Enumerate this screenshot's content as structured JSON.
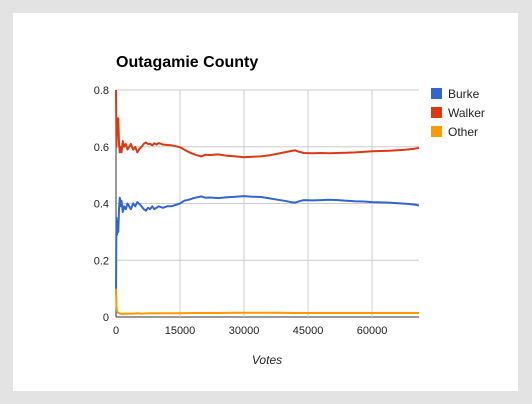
{
  "chart_data": {
    "type": "line",
    "title": "Outagamie County",
    "xlabel": "Votes",
    "ylabel": "",
    "xlim": [
      0,
      71000
    ],
    "ylim": [
      0,
      0.8
    ],
    "x_ticks": [
      0,
      15000,
      30000,
      45000,
      60000
    ],
    "y_ticks": [
      0,
      0.2,
      0.4,
      0.6,
      0.8
    ],
    "grid": true,
    "legend_position": "right",
    "series": [
      {
        "name": "Burke",
        "color": "#3366cc",
        "points": [
          [
            0,
            0.08
          ],
          [
            100,
            0.35
          ],
          [
            250,
            0.29
          ],
          [
            400,
            0.34
          ],
          [
            550,
            0.3
          ],
          [
            700,
            0.38
          ],
          [
            900,
            0.42
          ],
          [
            1100,
            0.39
          ],
          [
            1300,
            0.41
          ],
          [
            1600,
            0.37
          ],
          [
            1900,
            0.39
          ],
          [
            2300,
            0.38
          ],
          [
            2700,
            0.4
          ],
          [
            3100,
            0.39
          ],
          [
            3500,
            0.38
          ],
          [
            4000,
            0.4
          ],
          [
            4500,
            0.39
          ],
          [
            5000,
            0.405
          ],
          [
            5500,
            0.398
          ],
          [
            6000,
            0.39
          ],
          [
            6500,
            0.38
          ],
          [
            7000,
            0.375
          ],
          [
            7500,
            0.385
          ],
          [
            8000,
            0.38
          ],
          [
            8500,
            0.39
          ],
          [
            9000,
            0.38
          ],
          [
            9500,
            0.385
          ],
          [
            10000,
            0.39
          ],
          [
            11000,
            0.385
          ],
          [
            12000,
            0.39
          ],
          [
            13000,
            0.39
          ],
          [
            14000,
            0.395
          ],
          [
            15000,
            0.4
          ],
          [
            16000,
            0.41
          ],
          [
            17000,
            0.413
          ],
          [
            18000,
            0.418
          ],
          [
            19000,
            0.422
          ],
          [
            20000,
            0.425
          ],
          [
            21000,
            0.42
          ],
          [
            22000,
            0.421
          ],
          [
            24000,
            0.419
          ],
          [
            26000,
            0.422
          ],
          [
            28000,
            0.424
          ],
          [
            30000,
            0.426
          ],
          [
            32000,
            0.424
          ],
          [
            34000,
            0.423
          ],
          [
            36000,
            0.418
          ],
          [
            38000,
            0.413
          ],
          [
            40000,
            0.408
          ],
          [
            41000,
            0.405
          ],
          [
            42000,
            0.403
          ],
          [
            43000,
            0.408
          ],
          [
            44000,
            0.412
          ],
          [
            46000,
            0.411
          ],
          [
            48000,
            0.412
          ],
          [
            50000,
            0.413
          ],
          [
            52000,
            0.412
          ],
          [
            54000,
            0.41
          ],
          [
            56000,
            0.408
          ],
          [
            58000,
            0.407
          ],
          [
            60000,
            0.405
          ],
          [
            62000,
            0.404
          ],
          [
            64000,
            0.403
          ],
          [
            66000,
            0.401
          ],
          [
            68000,
            0.399
          ],
          [
            70000,
            0.396
          ],
          [
            71000,
            0.393
          ]
        ]
      },
      {
        "name": "Walker",
        "color": "#dc3912",
        "points": [
          [
            0,
            0.8
          ],
          [
            100,
            0.6
          ],
          [
            250,
            0.7
          ],
          [
            400,
            0.64
          ],
          [
            550,
            0.7
          ],
          [
            700,
            0.61
          ],
          [
            900,
            0.58
          ],
          [
            1100,
            0.6
          ],
          [
            1300,
            0.58
          ],
          [
            1600,
            0.62
          ],
          [
            1900,
            0.6
          ],
          [
            2300,
            0.61
          ],
          [
            2700,
            0.59
          ],
          [
            3100,
            0.6
          ],
          [
            3500,
            0.61
          ],
          [
            4000,
            0.59
          ],
          [
            4500,
            0.6
          ],
          [
            5000,
            0.58
          ],
          [
            5500,
            0.593
          ],
          [
            6000,
            0.6
          ],
          [
            6500,
            0.61
          ],
          [
            7000,
            0.615
          ],
          [
            7500,
            0.61
          ],
          [
            8000,
            0.61
          ],
          [
            8500,
            0.605
          ],
          [
            9000,
            0.612
          ],
          [
            9500,
            0.608
          ],
          [
            10000,
            0.613
          ],
          [
            11000,
            0.608
          ],
          [
            12000,
            0.606
          ],
          [
            13000,
            0.605
          ],
          [
            14000,
            0.602
          ],
          [
            15000,
            0.598
          ],
          [
            16000,
            0.59
          ],
          [
            17000,
            0.582
          ],
          [
            18000,
            0.575
          ],
          [
            19000,
            0.57
          ],
          [
            20000,
            0.566
          ],
          [
            21000,
            0.572
          ],
          [
            22000,
            0.571
          ],
          [
            24000,
            0.573
          ],
          [
            26000,
            0.568
          ],
          [
            28000,
            0.566
          ],
          [
            30000,
            0.563
          ],
          [
            32000,
            0.565
          ],
          [
            34000,
            0.566
          ],
          [
            36000,
            0.57
          ],
          [
            38000,
            0.576
          ],
          [
            40000,
            0.582
          ],
          [
            41000,
            0.585
          ],
          [
            42000,
            0.587
          ],
          [
            43000,
            0.582
          ],
          [
            44000,
            0.578
          ],
          [
            46000,
            0.577
          ],
          [
            48000,
            0.578
          ],
          [
            50000,
            0.577
          ],
          [
            52000,
            0.578
          ],
          [
            54000,
            0.579
          ],
          [
            56000,
            0.58
          ],
          [
            58000,
            0.582
          ],
          [
            60000,
            0.584
          ],
          [
            62000,
            0.585
          ],
          [
            64000,
            0.586
          ],
          [
            66000,
            0.588
          ],
          [
            68000,
            0.59
          ],
          [
            70000,
            0.593
          ],
          [
            71000,
            0.596
          ]
        ]
      },
      {
        "name": "Other",
        "color": "#ff9900",
        "points": [
          [
            0,
            0.1
          ],
          [
            100,
            0.04
          ],
          [
            250,
            0.02
          ],
          [
            400,
            0.015
          ],
          [
            700,
            0.014
          ],
          [
            1000,
            0.012
          ],
          [
            1500,
            0.011
          ],
          [
            2000,
            0.012
          ],
          [
            3000,
            0.012
          ],
          [
            4000,
            0.012
          ],
          [
            5000,
            0.013
          ],
          [
            6000,
            0.012
          ],
          [
            8000,
            0.013
          ],
          [
            10000,
            0.013
          ],
          [
            12000,
            0.013
          ],
          [
            15000,
            0.013
          ],
          [
            18000,
            0.014
          ],
          [
            20000,
            0.014
          ],
          [
            24000,
            0.014
          ],
          [
            28000,
            0.015
          ],
          [
            30000,
            0.015
          ],
          [
            34000,
            0.015
          ],
          [
            38000,
            0.015
          ],
          [
            42000,
            0.014
          ],
          [
            46000,
            0.014
          ],
          [
            50000,
            0.014
          ],
          [
            55000,
            0.014
          ],
          [
            60000,
            0.014
          ],
          [
            65000,
            0.014
          ],
          [
            71000,
            0.014
          ]
        ]
      }
    ]
  }
}
